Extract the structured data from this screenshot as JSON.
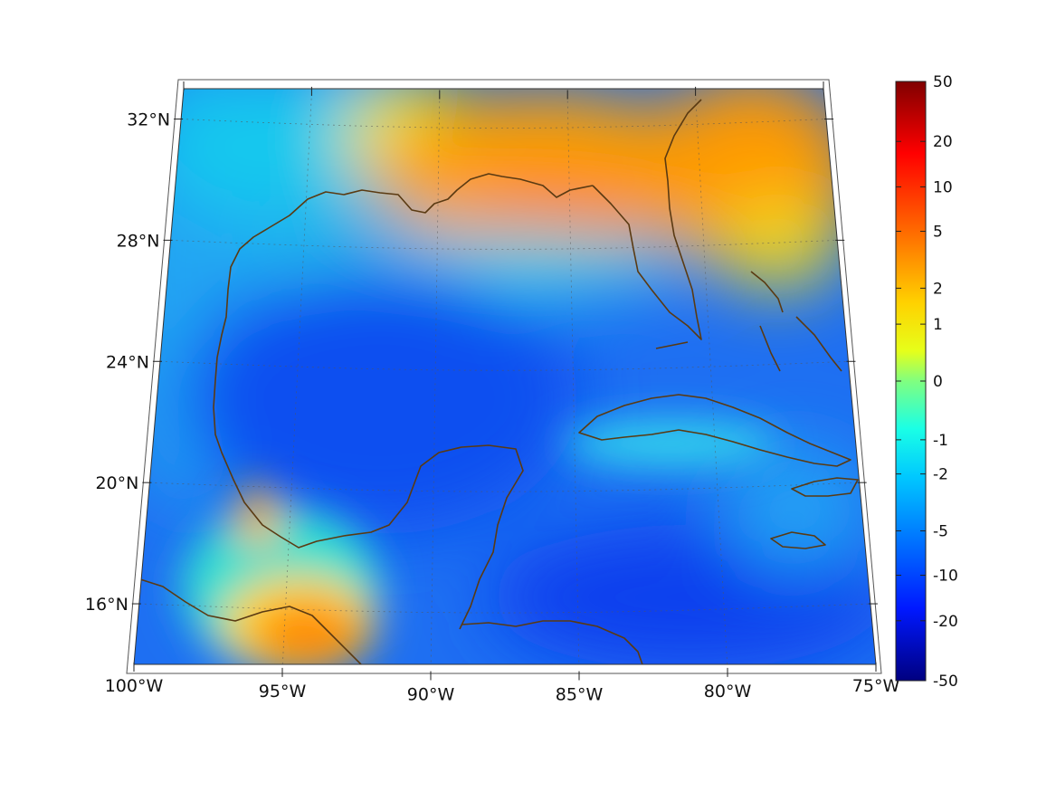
{
  "map": {
    "projection": "conic",
    "extent": {
      "lon": [
        -100,
        -75
      ],
      "lat": [
        14,
        33
      ]
    },
    "grid_on": true,
    "lat_ticks": [
      {
        "value": 32,
        "label": "32°N"
      },
      {
        "value": 28,
        "label": "28°N"
      },
      {
        "value": 24,
        "label": "24°N"
      },
      {
        "value": 20,
        "label": "20°N"
      },
      {
        "value": 16,
        "label": "16°N"
      }
    ],
    "lon_ticks": [
      {
        "value": -100,
        "label": "100°W"
      },
      {
        "value": -95,
        "label": "95°W"
      },
      {
        "value": -90,
        "label": "90°W"
      },
      {
        "value": -85,
        "label": "85°W"
      },
      {
        "value": -80,
        "label": "80°W"
      },
      {
        "value": -75,
        "label": "75°W"
      }
    ],
    "coastline_color": "#5a3a12",
    "field_note_regions": [
      {
        "name": "northern-gulf-high",
        "value": 5
      },
      {
        "name": "southeast-us-high",
        "value": 5
      },
      {
        "name": "gulf-interior-low",
        "value": -12
      },
      {
        "name": "caribbean-low",
        "value": -10
      },
      {
        "name": "tehuantepec-high",
        "value": 5
      }
    ]
  },
  "colorbar": {
    "colormap": "jet",
    "placement": "right",
    "ticks": [
      {
        "value": 50,
        "label": "50"
      },
      {
        "value": 20,
        "label": "20"
      },
      {
        "value": 10,
        "label": "10"
      },
      {
        "value": 5,
        "label": "5"
      },
      {
        "value": 2,
        "label": "2"
      },
      {
        "value": 1,
        "label": "1"
      },
      {
        "value": 0,
        "label": "0"
      },
      {
        "value": -1,
        "label": "-1"
      },
      {
        "value": -2,
        "label": "-2"
      },
      {
        "value": -5,
        "label": "-5"
      },
      {
        "value": -10,
        "label": "-10"
      },
      {
        "value": -20,
        "label": "-20"
      },
      {
        "value": -50,
        "label": "-50"
      }
    ]
  }
}
